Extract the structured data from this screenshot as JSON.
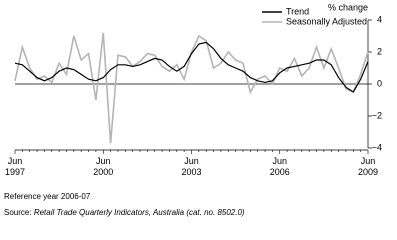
{
  "chart_data": {
    "type": "line",
    "y_axis_label": "% change",
    "categories": [
      "Jun\n1997",
      null,
      null,
      null,
      null,
      null,
      null,
      null,
      null,
      null,
      null,
      null,
      "Jun\n2000",
      null,
      null,
      null,
      null,
      null,
      null,
      null,
      null,
      null,
      null,
      null,
      "Jun\n2003",
      null,
      null,
      null,
      null,
      null,
      null,
      null,
      null,
      null,
      null,
      null,
      "Jun\n2006",
      null,
      null,
      null,
      null,
      null,
      null,
      null,
      null,
      null,
      null,
      null,
      "Jun\n2009"
    ],
    "series": [
      {
        "name": "Trend",
        "color": "#000000",
        "values": [
          1.3,
          1.2,
          0.8,
          0.4,
          0.2,
          0.4,
          0.8,
          1.0,
          0.9,
          0.6,
          0.3,
          0.2,
          0.4,
          0.9,
          1.2,
          1.2,
          1.1,
          1.2,
          1.4,
          1.6,
          1.5,
          1.1,
          0.8,
          1.1,
          1.9,
          2.5,
          2.6,
          2.2,
          1.6,
          1.2,
          1.0,
          0.8,
          0.4,
          0.2,
          0.1,
          0.2,
          0.7,
          1.0,
          1.1,
          1.2,
          1.3,
          1.5,
          1.5,
          1.2,
          0.4,
          -0.2,
          -0.5,
          0.3,
          1.4
        ]
      },
      {
        "name": "Seasonally Adjusted",
        "color": "#b4b4b4",
        "values": [
          0.2,
          2.3,
          1.0,
          0.3,
          0.5,
          0.1,
          1.3,
          0.6,
          3.0,
          1.5,
          1.9,
          -1.0,
          3.2,
          -3.7,
          1.8,
          1.7,
          1.1,
          1.4,
          1.9,
          1.8,
          1.1,
          0.8,
          1.2,
          0.3,
          2.0,
          3.0,
          2.7,
          1.0,
          1.3,
          2.0,
          1.5,
          1.3,
          -0.5,
          0.3,
          0.5,
          0.0,
          1.0,
          0.8,
          1.6,
          0.5,
          1.0,
          2.3,
          1.0,
          2.2,
          1.0,
          -0.3,
          -0.5,
          0.6,
          2.0
        ]
      }
    ],
    "ylim": [
      -4,
      4
    ],
    "yticks": [
      {
        "value": -4,
        "label": "−4"
      },
      {
        "value": -2,
        "label": "−2"
      },
      0,
      2,
      4
    ],
    "zero_line": true,
    "reference_note": "Reference year 2006-07",
    "source_prefix": "Source:",
    "source_title": "Retail Trade Quarterly Indicators, Australia (cat. no. 8502.0)"
  }
}
